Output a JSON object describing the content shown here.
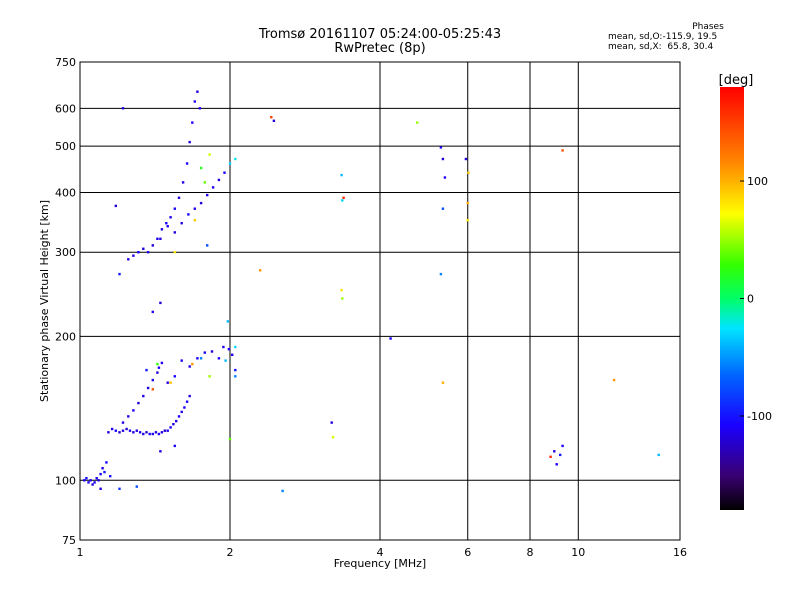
{
  "header": {
    "title": "Tromsø 20161107 05:24:00-05:25:43",
    "subtitle": "RwPretec (8p)"
  },
  "stats": {
    "heading": "Phases",
    "line1": "mean, sd,O:-115.9, 19.5",
    "line2": "mean, sd,X:  65.8, 30.4"
  },
  "colorbar": {
    "label": "[deg]",
    "ticks": [
      {
        "value": 100,
        "label": "100"
      },
      {
        "value": 0,
        "label": "0"
      },
      {
        "value": -100,
        "label": "-100"
      }
    ],
    "range": [
      -180,
      180
    ]
  },
  "chart_data": {
    "type": "scatter",
    "xlabel": "Frequency [MHz]",
    "ylabel": "Stationary phase Virtual Height [km]",
    "xscale": "log",
    "yscale": "log",
    "xlim": [
      1,
      16
    ],
    "ylim": [
      75,
      750
    ],
    "xticks": [
      1,
      2,
      4,
      6,
      8,
      10,
      16
    ],
    "yticks": [
      75,
      100,
      200,
      300,
      400,
      500,
      600,
      750
    ],
    "grid": true,
    "color_by": "phase [deg]",
    "points": [
      [
        1.02,
        100,
        -110
      ],
      [
        1.03,
        101,
        -105
      ],
      [
        1.04,
        99,
        -115
      ],
      [
        1.05,
        100,
        -110
      ],
      [
        1.06,
        98,
        -120
      ],
      [
        1.07,
        99,
        -108
      ],
      [
        1.08,
        101,
        -112
      ],
      [
        1.09,
        100,
        -118
      ],
      [
        1.1,
        103,
        -110
      ],
      [
        1.11,
        106,
        -115
      ],
      [
        1.12,
        104,
        -100
      ],
      [
        1.1,
        96,
        -120
      ],
      [
        1.13,
        109,
        -110
      ],
      [
        1.15,
        102,
        -105
      ],
      [
        1.14,
        126,
        -120
      ],
      [
        1.16,
        128,
        -115
      ],
      [
        1.18,
        127,
        -110
      ],
      [
        1.2,
        126,
        -125
      ],
      [
        1.22,
        127,
        -118
      ],
      [
        1.24,
        128,
        -122
      ],
      [
        1.26,
        127,
        -112
      ],
      [
        1.28,
        126,
        -116
      ],
      [
        1.3,
        127,
        -120
      ],
      [
        1.32,
        126,
        -114
      ],
      [
        1.34,
        125,
        -118
      ],
      [
        1.36,
        126,
        -124
      ],
      [
        1.38,
        125,
        -110
      ],
      [
        1.4,
        125,
        -116
      ],
      [
        1.42,
        126,
        -120
      ],
      [
        1.44,
        125,
        -112
      ],
      [
        1.46,
        126,
        -118
      ],
      [
        1.48,
        127,
        -122
      ],
      [
        1.5,
        127,
        -115
      ],
      [
        1.52,
        129,
        -110
      ],
      [
        1.54,
        131,
        -120
      ],
      [
        1.56,
        133,
        -116
      ],
      [
        1.58,
        136,
        -112
      ],
      [
        1.6,
        139,
        -118
      ],
      [
        1.62,
        142,
        -110
      ],
      [
        1.64,
        146,
        -115
      ],
      [
        1.66,
        150,
        -120
      ],
      [
        1.22,
        132,
        -115
      ],
      [
        1.25,
        136,
        -118
      ],
      [
        1.28,
        140,
        -110
      ],
      [
        1.31,
        145,
        -122
      ],
      [
        1.34,
        150,
        -114
      ],
      [
        1.37,
        156,
        -118
      ],
      [
        1.4,
        162,
        -112
      ],
      [
        1.43,
        168,
        -120
      ],
      [
        1.46,
        176,
        -116
      ],
      [
        1.36,
        170,
        -100
      ],
      [
        1.44,
        172,
        -110
      ],
      [
        1.5,
        160,
        -115
      ],
      [
        1.55,
        165,
        -108
      ],
      [
        1.6,
        178,
        -112
      ],
      [
        1.66,
        173,
        -118
      ],
      [
        1.72,
        180,
        -110
      ],
      [
        1.78,
        185,
        -115
      ],
      [
        1.84,
        186,
        -120
      ],
      [
        1.9,
        180,
        -112
      ],
      [
        1.94,
        190,
        -116
      ],
      [
        1.99,
        188,
        -110
      ],
      [
        2.02,
        183,
        -113
      ],
      [
        2.05,
        170,
        -105
      ],
      [
        1.4,
        155,
        140
      ],
      [
        1.43,
        175,
        30
      ],
      [
        1.52,
        160,
        95
      ],
      [
        1.68,
        175,
        110
      ],
      [
        1.75,
        180,
        -60
      ],
      [
        1.82,
        165,
        50
      ],
      [
        1.96,
        178,
        -40
      ],
      [
        2.05,
        190,
        -30
      ],
      [
        2.0,
        122,
        40
      ],
      [
        1.2,
        96,
        -90
      ],
      [
        1.3,
        97,
        -80
      ],
      [
        1.45,
        115,
        -118
      ],
      [
        1.55,
        118,
        -112
      ],
      [
        1.25,
        290,
        -120
      ],
      [
        1.28,
        295,
        -115
      ],
      [
        1.31,
        300,
        -110
      ],
      [
        1.34,
        305,
        -118
      ],
      [
        1.37,
        300,
        -112
      ],
      [
        1.4,
        310,
        -120
      ],
      [
        1.43,
        320,
        -115
      ],
      [
        1.46,
        335,
        -118
      ],
      [
        1.49,
        345,
        -110
      ],
      [
        1.52,
        355,
        -114
      ],
      [
        1.55,
        370,
        -112
      ],
      [
        1.58,
        390,
        -120
      ],
      [
        1.61,
        420,
        -116
      ],
      [
        1.64,
        460,
        -110
      ],
      [
        1.66,
        510,
        -118
      ],
      [
        1.68,
        560,
        -112
      ],
      [
        1.7,
        620,
        -115
      ],
      [
        1.72,
        650,
        -120
      ],
      [
        1.74,
        600,
        -110
      ],
      [
        1.45,
        320,
        -116
      ],
      [
        1.5,
        340,
        -112
      ],
      [
        1.55,
        330,
        -120
      ],
      [
        1.6,
        345,
        -118
      ],
      [
        1.65,
        360,
        -110
      ],
      [
        1.7,
        370,
        -114
      ],
      [
        1.75,
        380,
        -120
      ],
      [
        1.8,
        395,
        -116
      ],
      [
        1.85,
        410,
        -112
      ],
      [
        1.9,
        425,
        -118
      ],
      [
        1.95,
        440,
        -110
      ],
      [
        2.0,
        460,
        -30
      ],
      [
        2.05,
        470,
        -20
      ],
      [
        1.75,
        450,
        20
      ],
      [
        1.82,
        480,
        60
      ],
      [
        1.78,
        420,
        40
      ],
      [
        1.7,
        350,
        90
      ],
      [
        1.55,
        300,
        80
      ],
      [
        1.22,
        600,
        -115
      ],
      [
        1.18,
        375,
        -120
      ],
      [
        1.2,
        270,
        -100
      ],
      [
        1.4,
        225,
        -110
      ],
      [
        1.45,
        235,
        -120
      ],
      [
        1.8,
        310,
        -80
      ],
      [
        2.42,
        575,
        150
      ],
      [
        2.45,
        565,
        -120
      ],
      [
        2.3,
        275,
        110
      ],
      [
        2.05,
        165,
        -60
      ],
      [
        2.55,
        95,
        -60
      ],
      [
        1.98,
        215,
        -40
      ],
      [
        3.35,
        435,
        -40
      ],
      [
        3.36,
        385,
        -30
      ],
      [
        3.38,
        390,
        160
      ],
      [
        3.35,
        250,
        80
      ],
      [
        3.36,
        240,
        50
      ],
      [
        3.2,
        132,
        -120
      ],
      [
        3.22,
        123,
        60
      ],
      [
        4.2,
        198,
        -110
      ],
      [
        4.75,
        560,
        50
      ],
      [
        5.3,
        497,
        -110
      ],
      [
        5.35,
        470,
        -120
      ],
      [
        5.4,
        430,
        -115
      ],
      [
        5.35,
        370,
        -80
      ],
      [
        5.3,
        270,
        -60
      ],
      [
        5.35,
        160,
        100
      ],
      [
        5.95,
        470,
        -120
      ],
      [
        6.0,
        380,
        100
      ],
      [
        6.0,
        350,
        80
      ],
      [
        6.02,
        440,
        90
      ],
      [
        8.8,
        112,
        160
      ],
      [
        8.95,
        115,
        -120
      ],
      [
        9.05,
        108,
        -110
      ],
      [
        9.2,
        113,
        -100
      ],
      [
        9.3,
        118,
        -110
      ],
      [
        9.3,
        490,
        140
      ],
      [
        11.8,
        162,
        110
      ],
      [
        14.5,
        113,
        -40
      ]
    ]
  }
}
